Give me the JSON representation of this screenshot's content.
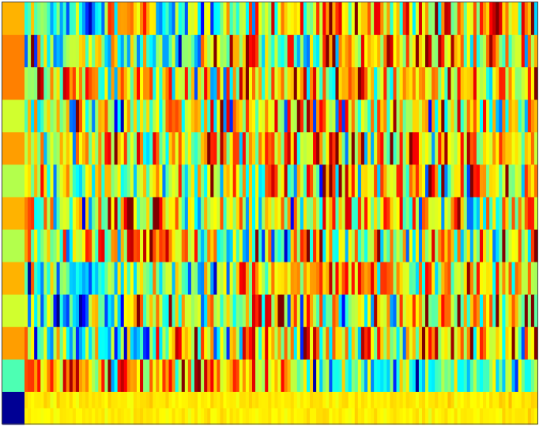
{
  "chart_data": {
    "type": "heatmap",
    "title": "",
    "xlabel": "",
    "ylabel": "",
    "colormap": "jet",
    "value_range": [
      0,
      1
    ],
    "grid": false,
    "legend": "none",
    "row_count": 13,
    "column_count": 160,
    "label_column": [
      0.7,
      0.75,
      0.75,
      0.58,
      0.72,
      0.55,
      0.7,
      0.55,
      0.7,
      0.58,
      0.72,
      0.45,
      0.02
    ],
    "rows": [
      {
        "mean": 0.52,
        "spread": 0.16,
        "segments": [
          [
            0.0,
            0.15,
            0.46
          ],
          [
            0.15,
            0.25,
            0.65
          ],
          [
            0.25,
            0.38,
            0.4
          ],
          [
            0.38,
            0.55,
            0.62
          ],
          [
            0.55,
            1.0,
            0.7
          ]
        ]
      },
      {
        "mean": 0.55,
        "spread": 0.18,
        "segments": [
          [
            0.0,
            0.2,
            0.48
          ],
          [
            0.2,
            0.35,
            0.45
          ],
          [
            0.35,
            1.0,
            0.66
          ]
        ]
      },
      {
        "mean": 0.65,
        "spread": 0.16,
        "segments": [
          [
            0.0,
            0.3,
            0.66
          ],
          [
            0.3,
            0.6,
            0.62
          ],
          [
            0.6,
            1.0,
            0.66
          ]
        ]
      },
      {
        "mean": 0.58,
        "spread": 0.18,
        "segments": [
          [
            0.0,
            0.25,
            0.52
          ],
          [
            0.25,
            1.0,
            0.64
          ]
        ]
      },
      {
        "mean": 0.62,
        "spread": 0.18,
        "segments": [
          [
            0.0,
            1.0,
            0.62
          ]
        ]
      },
      {
        "mean": 0.58,
        "spread": 0.18,
        "segments": [
          [
            0.0,
            0.35,
            0.56
          ],
          [
            0.35,
            0.55,
            0.6
          ],
          [
            0.55,
            1.0,
            0.66
          ]
        ]
      },
      {
        "mean": 0.6,
        "spread": 0.18,
        "segments": [
          [
            0.0,
            1.0,
            0.6
          ]
        ]
      },
      {
        "mean": 0.58,
        "spread": 0.18,
        "segments": [
          [
            0.0,
            0.2,
            0.55
          ],
          [
            0.2,
            0.35,
            0.74
          ],
          [
            0.35,
            0.55,
            0.48
          ],
          [
            0.55,
            1.0,
            0.6
          ]
        ]
      },
      {
        "mean": 0.55,
        "spread": 0.14,
        "segments": [
          [
            0.0,
            0.4,
            0.44
          ],
          [
            0.4,
            0.6,
            0.66
          ],
          [
            0.6,
            0.75,
            0.7
          ],
          [
            0.75,
            1.0,
            0.62
          ]
        ]
      },
      {
        "mean": 0.55,
        "spread": 0.18,
        "segments": [
          [
            0.0,
            0.2,
            0.42
          ],
          [
            0.2,
            0.4,
            0.62
          ],
          [
            0.4,
            1.0,
            0.6
          ]
        ]
      },
      {
        "mean": 0.56,
        "spread": 0.18,
        "segments": [
          [
            0.0,
            0.2,
            0.52
          ],
          [
            0.2,
            0.28,
            0.38
          ],
          [
            0.28,
            0.55,
            0.64
          ],
          [
            0.55,
            1.0,
            0.62
          ]
        ]
      },
      {
        "mean": 0.58,
        "spread": 0.14,
        "segments": [
          [
            0.0,
            0.55,
            0.72
          ],
          [
            0.55,
            1.0,
            0.42
          ]
        ]
      },
      {
        "mean": 0.64,
        "spread": 0.015,
        "segments": [
          [
            0.0,
            1.0,
            0.64
          ]
        ],
        "split_rows": 2
      }
    ]
  }
}
